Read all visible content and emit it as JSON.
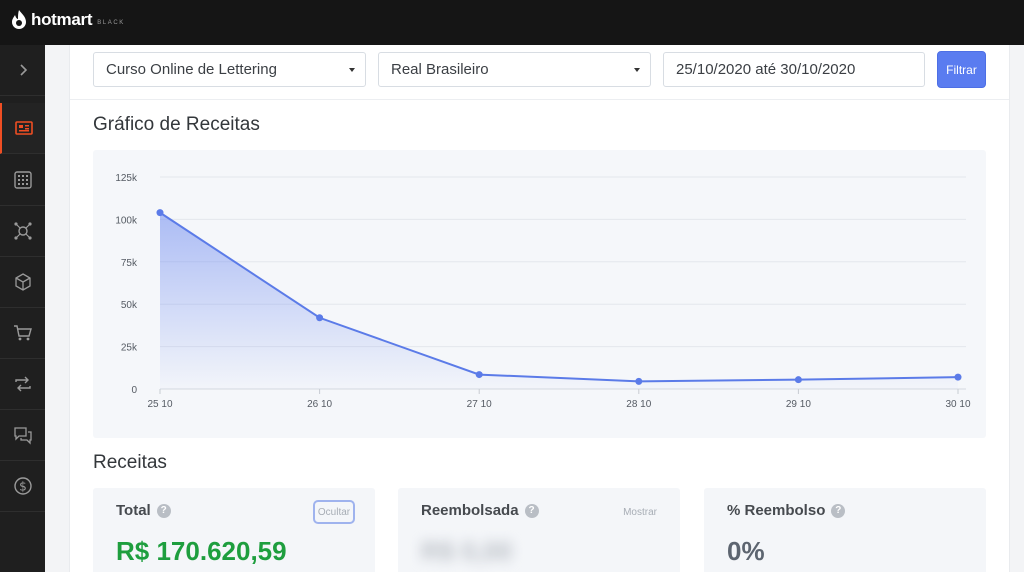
{
  "header": {
    "logo_text": "hotmart",
    "logo_suffix": "BLACK"
  },
  "sidebar": {
    "items": [
      {
        "name": "expand",
        "icon": "chevron-right-icon",
        "active": false
      },
      {
        "name": "dashboard",
        "icon": "dashboard-icon",
        "active": true
      },
      {
        "name": "apps",
        "icon": "grid-icon",
        "active": false
      },
      {
        "name": "affiliates",
        "icon": "network-icon",
        "active": false
      },
      {
        "name": "products",
        "icon": "box-icon",
        "active": false
      },
      {
        "name": "sales",
        "icon": "cart-icon",
        "active": false
      },
      {
        "name": "subscriptions",
        "icon": "refresh-icon",
        "active": false
      },
      {
        "name": "messages",
        "icon": "chat-icon",
        "active": false
      },
      {
        "name": "finance",
        "icon": "dollar-icon",
        "active": false
      }
    ]
  },
  "filters": {
    "product": "Curso Online de Lettering",
    "currency": "Real Brasileiro",
    "date_range": "25/10/2020 até 30/10/2020",
    "filter_button": "Filtrar"
  },
  "chart_section": {
    "title": "Gráfico de Receitas"
  },
  "chart_data": {
    "type": "area",
    "categories": [
      "25 10",
      "26 10",
      "27 10",
      "28 10",
      "29 10",
      "30 10"
    ],
    "series": [
      {
        "values": [
          104000,
          42000,
          8500,
          4500,
          5500,
          7000
        ]
      }
    ],
    "y_ticks": [
      "0",
      "25k",
      "50k",
      "75k",
      "100k",
      "125k"
    ],
    "ylim": [
      0,
      125000
    ],
    "grid": true,
    "line_color": "#5b7be8"
  },
  "revenue_section": {
    "title": "Receitas",
    "cards": [
      {
        "label": "Total",
        "value": "R$ 170.620,59",
        "toggle": "Ocultar",
        "value_color": "#1e9e3e"
      },
      {
        "label": "Reembolsada",
        "value": "R$ 0,00",
        "toggle": "Mostrar",
        "value_color": "#b8bdc4"
      },
      {
        "label": "% Reembolso",
        "value": "0%",
        "toggle": "",
        "value_color": "#5d6570"
      }
    ]
  }
}
